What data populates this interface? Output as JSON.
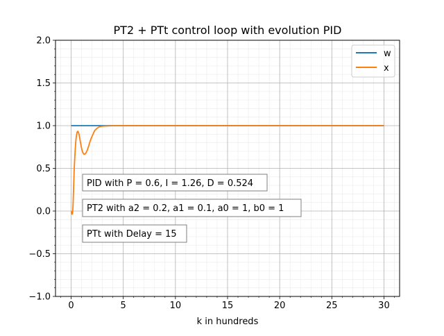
{
  "chart_data": {
    "type": "line",
    "title": "PT2 + PTt control loop with evolution PID",
    "xlabel": "k in hundreds",
    "ylabel": "",
    "xlim": [
      -1.5,
      31.5
    ],
    "ylim": [
      -1.0,
      2.0
    ],
    "xticks": [
      0,
      5,
      10,
      15,
      20,
      25,
      30
    ],
    "xtick_labels": [
      "0",
      "5",
      "10",
      "15",
      "20",
      "25",
      "30"
    ],
    "yticks": [
      -1.0,
      -0.5,
      0.0,
      0.5,
      1.0,
      1.5,
      2.0
    ],
    "ytick_labels": [
      "−1.0",
      "−0.5",
      "0.0",
      "0.5",
      "1.0",
      "1.5",
      "2.0"
    ],
    "grid": true,
    "minor_grid": true,
    "legend_position": "top-right",
    "series": [
      {
        "name": "w",
        "color": "#1f77b4",
        "x": [
          0,
          3,
          5,
          30
        ],
        "y": [
          1.0,
          1.0,
          1.0,
          1.0
        ]
      },
      {
        "name": "x",
        "color": "#ff7f0e",
        "x": [
          0,
          0.15,
          0.3,
          0.45,
          0.6,
          0.75,
          0.9,
          1.05,
          1.2,
          1.35,
          1.5,
          1.65,
          1.8,
          1.95,
          2.1,
          2.25,
          2.4,
          2.55,
          2.7,
          2.85,
          3.0,
          3.2,
          3.4,
          3.6,
          3.8,
          4.0,
          4.3,
          4.6,
          5.0,
          6.0,
          8.0,
          10.0,
          15.0,
          20.0,
          25.0,
          30.0
        ],
        "y": [
          0.0,
          0.0,
          0.5,
          0.82,
          0.93,
          0.9,
          0.8,
          0.71,
          0.67,
          0.67,
          0.7,
          0.75,
          0.81,
          0.86,
          0.9,
          0.94,
          0.96,
          0.975,
          0.985,
          0.99,
          0.993,
          0.995,
          0.996,
          0.997,
          0.998,
          0.999,
          1.0,
          1.0,
          1.0,
          1.0,
          1.0,
          1.0,
          1.0,
          1.0,
          1.0,
          1.0
        ]
      }
    ],
    "annotations": [
      "PID with P = 0.6, I = 1.26, D = 0.524",
      "PT2 with a2 = 0.2, a1 = 0.1, a0 = 1, b0 = 1",
      "PTt with Delay = 15"
    ]
  }
}
